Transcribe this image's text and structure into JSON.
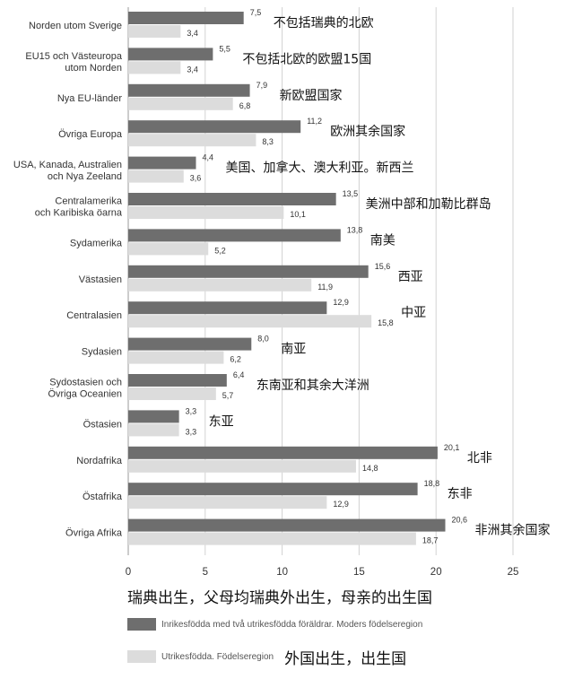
{
  "chart_data": {
    "type": "bar",
    "orientation": "horizontal",
    "xlim": [
      0,
      25
    ],
    "xticks": [
      "0",
      "5",
      "10",
      "15",
      "20",
      "25"
    ],
    "grid": true,
    "categories": [
      {
        "label": [
          "Norden utom Sverige"
        ],
        "annotation": "不包括瑞典的北欧"
      },
      {
        "label": [
          "EU15 och Västeuropa",
          "utom Norden"
        ],
        "annotation": "不包括北欧的欧盟15国"
      },
      {
        "label": [
          "Nya EU-länder"
        ],
        "annotation": "新欧盟国家"
      },
      {
        "label": [
          "Övriga Europa"
        ],
        "annotation": "欧洲其余国家"
      },
      {
        "label": [
          "USA, Kanada, Australien",
          "och Nya Zeeland"
        ],
        "annotation": "美国、加拿大、澳大利亚。新西兰"
      },
      {
        "label": [
          "Centralamerika",
          "och Karibiska öarna"
        ],
        "annotation": "美洲中部和加勒比群岛"
      },
      {
        "label": [
          "Sydamerika"
        ],
        "annotation": "南美"
      },
      {
        "label": [
          "Västasien"
        ],
        "annotation": "西亚"
      },
      {
        "label": [
          "Centralasien"
        ],
        "annotation": "中亚"
      },
      {
        "label": [
          "Sydasien"
        ],
        "annotation": "南亚"
      },
      {
        "label": [
          "Sydostasien och",
          "Övriga Oceanien"
        ],
        "annotation": "东南亚和其余大洋洲"
      },
      {
        "label": [
          "Östasien"
        ],
        "annotation": "东亚"
      },
      {
        "label": [
          "Nordafrika"
        ],
        "annotation": "北非"
      },
      {
        "label": [
          "Östafrika"
        ],
        "annotation": "东非"
      },
      {
        "label": [
          "Övriga Afrika"
        ],
        "annotation": "非洲其余国家"
      }
    ],
    "series": [
      {
        "name": "Inrikesfödda med två utrikesfödda föräldrar. Moders födelseregion",
        "color": "#6e6e6e",
        "values": [
          7.5,
          5.5,
          7.9,
          11.2,
          4.4,
          13.5,
          13.8,
          15.6,
          12.9,
          8.0,
          6.4,
          3.3,
          20.1,
          18.8,
          20.6
        ],
        "labels": [
          "7,5",
          "5,5",
          "7,9",
          "11,2",
          "4,4",
          "13,5",
          "13,8",
          "15,6",
          "12,9",
          "8,0",
          "6,4",
          "3,3",
          "20,1",
          "18,8",
          "20,6"
        ]
      },
      {
        "name": "Utrikesfödda. Födelseregion",
        "color": "#dcdcdc",
        "values": [
          3.4,
          3.4,
          6.8,
          8.3,
          3.6,
          10.1,
          5.2,
          11.9,
          15.8,
          6.2,
          5.7,
          3.3,
          14.8,
          12.9,
          18.7
        ],
        "labels": [
          "3,4",
          "3,4",
          "6,8",
          "8,3",
          "3,6",
          "10,1",
          "5,2",
          "11,9",
          "15,8",
          "6,2",
          "5,7",
          "3,3",
          "14,8",
          "12,9",
          "18,7"
        ]
      }
    ]
  },
  "legend": {
    "title_cn": "瑞典出生，父母均瑞典外出生，母亲的出生国",
    "items": [
      {
        "text": "Inrikesfödda med två utrikesfödda föräldrar. Moders födelseregion",
        "annotation": "",
        "color": "#6e6e6e"
      },
      {
        "text": "Utrikesfödda. Födelseregion",
        "annotation": "外国出生，出生国",
        "color": "#dcdcdc"
      }
    ]
  }
}
